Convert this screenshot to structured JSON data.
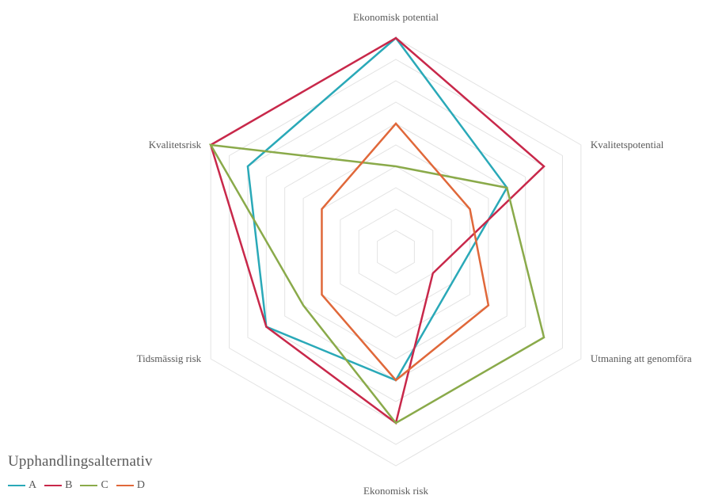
{
  "chart_data": {
    "type": "radar",
    "axes": [
      "Ekonomisk potential",
      "Kvalitetspotential",
      "Utmaning att genomföra",
      "Ekonomisk risk",
      "Tidsmässig risk",
      "Kvalitetsrisk"
    ],
    "rmax": 10,
    "gridlines": 10,
    "legend_title": "Upphandlingsalternativ",
    "legend_position": "bottom-left",
    "series": [
      {
        "name": "A",
        "color": "#2aa9b8",
        "values": [
          10,
          6,
          3,
          6,
          7,
          8
        ]
      },
      {
        "name": "B",
        "color": "#c8284a",
        "values": [
          10,
          8,
          2,
          8,
          7,
          10
        ]
      },
      {
        "name": "C",
        "color": "#8aaa4a",
        "values": [
          4,
          6,
          8,
          8,
          5,
          10
        ]
      },
      {
        "name": "D",
        "color": "#e0683a",
        "values": [
          6,
          4,
          5,
          6,
          4,
          4
        ]
      }
    ]
  }
}
